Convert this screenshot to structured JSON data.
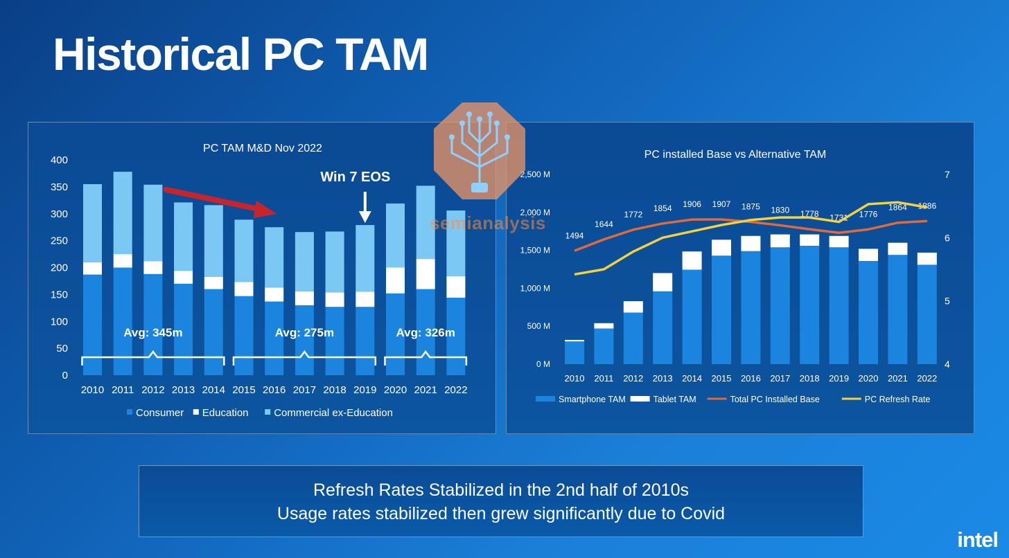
{
  "slide": {
    "title": "Historical PC TAM",
    "callout_lines": [
      "Refresh Rates Stabilized in the 2nd half of 2010s",
      "Usage rates stabilized then grew significantly due to Covid"
    ],
    "brand": "intel",
    "watermark": "semianalysis",
    "colors": {
      "background": "#0f5fb3",
      "consumer": "#1a84de",
      "education": "#ffffff",
      "commercial": "#7cc8f5",
      "pc_installed_base": "#e06a3b",
      "refresh_rate": "#f5d23c",
      "arrow": "#c8242b"
    }
  },
  "chart_data": [
    {
      "type": "bar",
      "stacked": true,
      "title": "PC TAM M&D Nov 2022",
      "categories": [
        "2010",
        "2011",
        "2012",
        "2013",
        "2014",
        "2015",
        "2016",
        "2017",
        "2018",
        "2019",
        "2020",
        "2021",
        "2022"
      ],
      "series": [
        {
          "name": "Consumer",
          "values": [
            187,
            200,
            188,
            170,
            160,
            147,
            137,
            130,
            127,
            127,
            152,
            160,
            144
          ]
        },
        {
          "name": "Education",
          "values": [
            23,
            25,
            24,
            24,
            23,
            26,
            26,
            26,
            27,
            28,
            48,
            56,
            40
          ]
        },
        {
          "name": "Commercial ex-Education",
          "values": [
            145,
            153,
            142,
            127,
            133,
            116,
            112,
            110,
            113,
            124,
            119,
            136,
            122
          ]
        }
      ],
      "ylim": [
        0,
        400
      ],
      "yticks": [
        "0",
        "50",
        "100",
        "150",
        "200",
        "250",
        "300",
        "350",
        "400"
      ],
      "legend": "bottom",
      "annotations": [
        {
          "text": "Avg: 345m",
          "from": "2010",
          "to": "2014"
        },
        {
          "text": "Avg: 275m",
          "from": "2015",
          "to": "2019"
        },
        {
          "text": "Avg: 326m",
          "from": "2020",
          "to": "2022"
        },
        {
          "text": "Win 7 EOS",
          "at": "2019"
        }
      ],
      "trend_arrow": {
        "from": "2013",
        "to": "2016",
        "direction": "down"
      }
    },
    {
      "type": "bar",
      "stacked": true,
      "title": "PC installed Base vs Alternative TAM",
      "categories": [
        "2010",
        "2011",
        "2012",
        "2013",
        "2014",
        "2015",
        "2016",
        "2017",
        "2018",
        "2019",
        "2020",
        "2021",
        "2022"
      ],
      "series": [
        {
          "name": "Smartphone TAM",
          "values": [
            300,
            470,
            680,
            960,
            1245,
            1430,
            1490,
            1540,
            1560,
            1540,
            1360,
            1440,
            1310
          ]
        },
        {
          "name": "Tablet TAM",
          "values": [
            20,
            70,
            150,
            240,
            240,
            210,
            200,
            170,
            150,
            150,
            160,
            160,
            160
          ]
        }
      ],
      "lines": [
        {
          "name": "Total PC Installed Base",
          "axis": "left",
          "values": [
            1494,
            1644,
            1772,
            1854,
            1906,
            1907,
            1875,
            1830,
            1778,
            1731,
            1776,
            1864,
            1886
          ],
          "labels": [
            "1494",
            "1644",
            "1772",
            "1854",
            "1906",
            "1907",
            "1875",
            "1830",
            "1778",
            "1731",
            "1776",
            "1864",
            "1886"
          ]
        },
        {
          "name": "PC Refresh Rate",
          "axis": "right",
          "values": [
            5.42,
            5.5,
            5.78,
            6.0,
            6.1,
            6.2,
            6.28,
            6.32,
            6.32,
            6.25,
            6.53,
            6.56,
            6.48
          ]
        }
      ],
      "ylim": [
        0,
        2500
      ],
      "yticks": [
        "0 M",
        "500 M",
        "1,000 M",
        "1,500 M",
        "2,000 M",
        "2,500 M"
      ],
      "y2lim": [
        4,
        7
      ],
      "y2ticks": [
        "4",
        "5",
        "6",
        "7"
      ],
      "legend": "bottom"
    }
  ]
}
